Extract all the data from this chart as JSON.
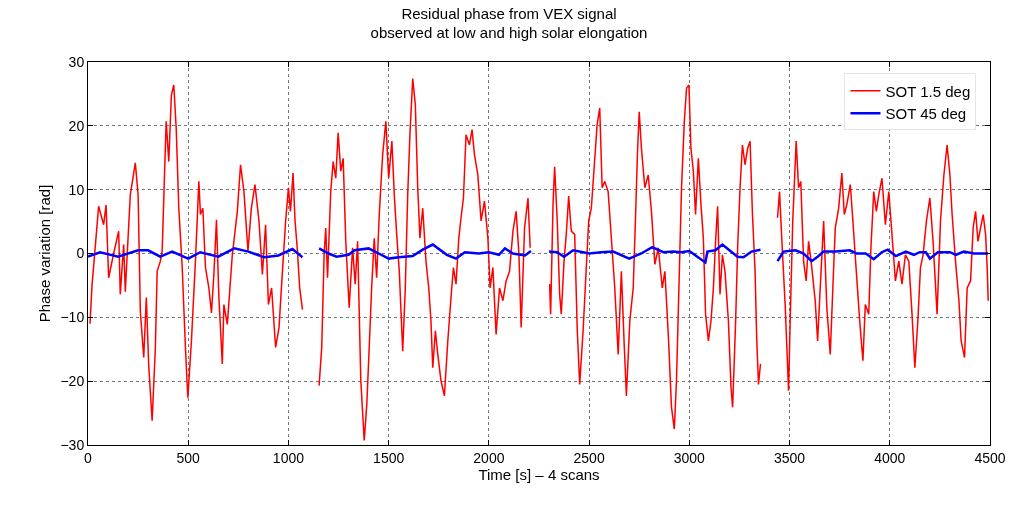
{
  "chart_data": {
    "type": "line",
    "title": "Residual phase from VEX signal\nobserved at low and high solar elongation",
    "xlabel": "Time [s] – 4 scans",
    "ylabel": "Phase variation [rad]",
    "xlim": [
      0,
      4500
    ],
    "xticks": [
      0,
      500,
      1000,
      1500,
      2000,
      2500,
      3000,
      3500,
      4000,
      4500
    ],
    "ylim": [
      -30,
      30
    ],
    "yticks": [
      {
        "value": -30,
        "label": "−30"
      },
      {
        "value": -20,
        "label": "−20"
      },
      {
        "value": -10,
        "label": "−10"
      },
      0,
      10,
      20,
      30
    ],
    "grid": true,
    "legend": "top right",
    "line_style": "solid",
    "marker": "none",
    "series": [
      {
        "name": "SOT 1.5 deg",
        "color": "#ff0000",
        "x": [
          10,
          20,
          36,
          53,
          78,
          90,
          103,
          128,
          153,
          161,
          178,
          186,
          211,
          236,
          250,
          261,
          278,
          291,
          303,
          320,
          336,
          345,
          361,
          370,
          390,
          403,
          416,
          428,
          440,
          453,
          470,
          486,
          498,
          516,
          536,
          553,
          561,
          573,
          586,
          603,
          616,
          628,
          641,
          653,
          670,
          678,
          695,
          720,
          745,
          761,
          778,
          798,
          815,
          833,
          853,
          870,
          886,
          900,
          916,
          936,
          953,
          970,
          986,
          1000,
          1010,
          1023,
          1033,
          1045,
          1056,
          1070,
          1110,
          1153,
          1166,
          1178,
          1186,
          1195,
          1211,
          1223,
          1236,
          1248,
          1261,
          1273,
          1286,
          1303,
          1320,
          1333,
          1345,
          1361,
          1378,
          1391,
          1403,
          1415,
          1428,
          1440,
          1453,
          1470,
          1486,
          1500,
          1516,
          1528,
          1540,
          1553,
          1570,
          1583,
          1595,
          1606,
          1620,
          1633,
          1645,
          1656,
          1670,
          1686,
          1700,
          1711,
          1720,
          1733,
          1745,
          1761,
          1778,
          1795,
          1811,
          1823,
          1836,
          1850,
          1861,
          1873,
          1886,
          1903,
          1916,
          1928,
          1945,
          1961,
          1978,
          1995,
          2006,
          2020,
          2036,
          2053,
          2070,
          2086,
          2103,
          2120,
          2136,
          2150,
          2161,
          2178,
          2195,
          2206,
          2250,
          2303,
          2308,
          2320,
          2328,
          2341,
          2353,
          2361,
          2375,
          2386,
          2398,
          2411,
          2428,
          2441,
          2453,
          2470,
          2486,
          2498,
          2511,
          2525,
          2540,
          2553,
          2565,
          2578,
          2595,
          2611,
          2628,
          2645,
          2661,
          2675,
          2686,
          2703,
          2720,
          2731,
          2741,
          2750,
          2761,
          2778,
          2795,
          2811,
          2828,
          2845,
          2865,
          2878,
          2895,
          2911,
          2925,
          2936,
          2948,
          2961,
          2975,
          2986,
          2998,
          3008,
          3020,
          3031,
          3045,
          3058,
          3070,
          3081,
          3095,
          3108,
          3120,
          3131,
          3141,
          3153,
          3165,
          3178,
          3195,
          3208,
          3216,
          3231,
          3241,
          3253,
          3265,
          3278,
          3291,
          3303,
          3315,
          3328,
          3336,
          3345,
          3355,
          3400,
          3440,
          3450,
          3461,
          3478,
          3495,
          3503,
          3516,
          3533,
          3545,
          3556,
          3570,
          3583,
          3595,
          3611,
          3628,
          3640,
          3653,
          3670,
          3686,
          3703,
          3716,
          3728,
          3745,
          3761,
          3773,
          3786,
          3803,
          3816,
          3833,
          3850,
          3866,
          3878,
          3895,
          3906,
          3920,
          3933,
          3945,
          3961,
          3978,
          3995,
          4011,
          4028,
          4045,
          4061,
          4078,
          4095,
          4111,
          4125,
          4140,
          4153,
          4166,
          4183,
          4200,
          4216,
          4236,
          4253,
          4270,
          4286,
          4300,
          4311,
          4328,
          4345,
          4356,
          4373,
          4386,
          4403,
          4416,
          4428,
          4440,
          4453,
          4466,
          4478,
          4486,
          4491
        ],
        "values": [
          -11,
          -5,
          1,
          7.4,
          4.5,
          7.6,
          -3.8,
          0,
          3.5,
          -6.4,
          1.4,
          -6,
          9.2,
          14.2,
          9.2,
          -9,
          -16.3,
          -6.9,
          -17.6,
          -26.2,
          -14.8,
          -2.8,
          -1.2,
          0.4,
          20.7,
          14.4,
          24.8,
          26.4,
          19.6,
          7.1,
          -2.2,
          -14.7,
          -22.6,
          -13.7,
          -1.2,
          11.3,
          6.1,
          7.1,
          -2.2,
          -5.4,
          -9.3,
          -3.3,
          5.3,
          -6.9,
          -17.3,
          -8,
          -11.1,
          -0.2,
          6.6,
          13.9,
          9.7,
          0.4,
          7.1,
          10.8,
          5.1,
          -3.3,
          4.5,
          -8,
          -5.4,
          -14.7,
          -11.6,
          -2.8,
          5.1,
          10.3,
          6.6,
          12.6,
          5.1,
          0.4,
          -5.4,
          -8.8,
          null,
          -20.7,
          -14.7,
          -0.2,
          4,
          -3.8,
          9.7,
          14.4,
          11.8,
          18.9,
          12.9,
          14.9,
          1.9,
          -8.5,
          0.9,
          -4.8,
          1.9,
          -19.9,
          -29.3,
          -23.6,
          -14.7,
          -5.4,
          2.4,
          -3.8,
          6.1,
          15.5,
          20.7,
          11.8,
          17.6,
          9.2,
          3,
          -2.8,
          -15.3,
          -5.4,
          9.2,
          18.6,
          27.4,
          23.3,
          10.3,
          2.4,
          7.1,
          -1.2,
          -5.4,
          -10.6,
          -17.9,
          -12.1,
          -15.8,
          -19.9,
          -22.3,
          -13.7,
          -6.9,
          -2.2,
          -4.8,
          2.4,
          5.6,
          8.7,
          18.6,
          17,
          19.4,
          15.5,
          12.3,
          5.1,
          8.2,
          2.4,
          -5.4,
          -2.2,
          -12.7,
          -5.4,
          -7.4,
          -4.3,
          -2.8,
          3.5,
          6.6,
          -0.2,
          -11.6,
          4,
          8.7,
          0.9,
          null,
          -4.8,
          -9.5,
          7.7,
          13.6,
          5.1,
          -6.4,
          -9.5,
          -1.2,
          3,
          9,
          3.5,
          3,
          -12.1,
          -20.5,
          -12.1,
          -2.2,
          5.1,
          7.1,
          13.4,
          20.2,
          22.8,
          10.3,
          11.3,
          9.7,
          2.4,
          -5.4,
          -15.8,
          -2.8,
          -14.2,
          -22.3,
          -10.6,
          -5.4,
          5.1,
          15.5,
          22.2,
          16.5,
          10.3,
          12.3,
          6.6,
          -1.7,
          0.9,
          -5.4,
          -2.8,
          -12.7,
          -24.1,
          -27.5,
          -19.9,
          -5.4,
          10.3,
          20.7,
          25.9,
          26.4,
          16.5,
          12.9,
          6.1,
          14.9,
          7.7,
          2.4,
          -9.5,
          -13.7,
          -10.6,
          -5.4,
          1.9,
          7.4,
          -6.4,
          -0.2,
          -2.8,
          -10.6,
          -21,
          -24.1,
          -10.6,
          0.9,
          10.3,
          17,
          13.9,
          16.5,
          17.6,
          6.1,
          -2.8,
          -13.2,
          -20.5,
          -17.3,
          null,
          5.6,
          9.7,
          2.4,
          -8,
          -21.5,
          -10.6,
          5.1,
          17.6,
          10.3,
          11.3,
          -1.2,
          -4.3,
          1.9,
          -2.2,
          -7.4,
          -13.7,
          -5.4,
          5.1,
          -8.5,
          -15.8,
          -5.4,
          4,
          7.1,
          12.6,
          6.1,
          7.7,
          10.8,
          5.1,
          -2.8,
          -10.6,
          -16.8,
          -8,
          -9.5,
          0.9,
          9.7,
          6.6,
          9.2,
          11.8,
          4.5,
          9.7,
          3,
          -4.3,
          -1.2,
          -4.8,
          -0.2,
          -1.2,
          -9.5,
          -17.9,
          -10.6,
          -2.2,
          -0.2,
          5.1,
          8.7,
          1.9,
          -9.5,
          5.1,
          12.3,
          17,
          12.3,
          6.1,
          -1.2,
          -7.4,
          -13.7,
          -16.3,
          -5.4,
          -4.3,
          4,
          6.6,
          1.9,
          4,
          6.1,
          3,
          -2.2,
          -7.4
        ]
      },
      {
        "name": "SOT 45 deg",
        "color": "#0000ff",
        "x": [
          0,
          60,
          150,
          250,
          300,
          360,
          420,
          500,
          560,
          650,
          730,
          800,
          880,
          950,
          1020,
          1070,
          1110,
          1153,
          1200,
          1240,
          1300,
          1330,
          1400,
          1450,
          1500,
          1550,
          1620,
          1670,
          1720,
          1790,
          1836,
          1880,
          1950,
          2000,
          2050,
          2080,
          2120,
          2180,
          2210,
          2250,
          2300,
          2340,
          2375,
          2420,
          2470,
          2500,
          2560,
          2620,
          2700,
          2760,
          2815,
          2870,
          2920,
          2960,
          3000,
          3040,
          3080,
          3090,
          3130,
          3165,
          3200,
          3240,
          3270,
          3310,
          3355,
          3400,
          3440,
          3470,
          3530,
          3570,
          3610,
          3640,
          3670,
          3730,
          3800,
          3833,
          3880,
          3920,
          3960,
          3990,
          4030,
          4080,
          4120,
          4150,
          4180,
          4200,
          4240,
          4300,
          4330,
          4370,
          4420,
          4490
        ],
        "values": [
          -0.5,
          0.2,
          -0.5,
          0.5,
          0.5,
          -0.5,
          0.3,
          -0.8,
          0.2,
          -0.5,
          0.8,
          0.3,
          -0.6,
          -0.3,
          0.7,
          -0.6,
          null,
          0.8,
          0,
          -0.5,
          -0.2,
          0.5,
          0.8,
          0,
          -0.8,
          -0.6,
          -0.4,
          0.6,
          1.4,
          -0.2,
          -0.8,
          0.2,
          0,
          0.2,
          -0.2,
          0.8,
          0,
          -0.3,
          0.4,
          null,
          0.3,
          0.2,
          -0.5,
          0.5,
          0.2,
          0,
          0.2,
          0.3,
          -0.8,
          0,
          1,
          0.2,
          0.3,
          0.2,
          0.4,
          -0.5,
          -1.4,
          0.3,
          0.5,
          1.4,
          0.5,
          -0.5,
          -0.6,
          0.3,
          0.6,
          null,
          -1.2,
          0.3,
          0.5,
          0,
          -1.2,
          -0.5,
          0.3,
          0.3,
          0.5,
          0,
          0,
          -0.9,
          0.2,
          0.6,
          -0.4,
          0.3,
          -0.2,
          0.2,
          0.2,
          -0.8,
          0.2,
          0.2,
          -0.2,
          0.3,
          0,
          0
        ]
      }
    ]
  }
}
